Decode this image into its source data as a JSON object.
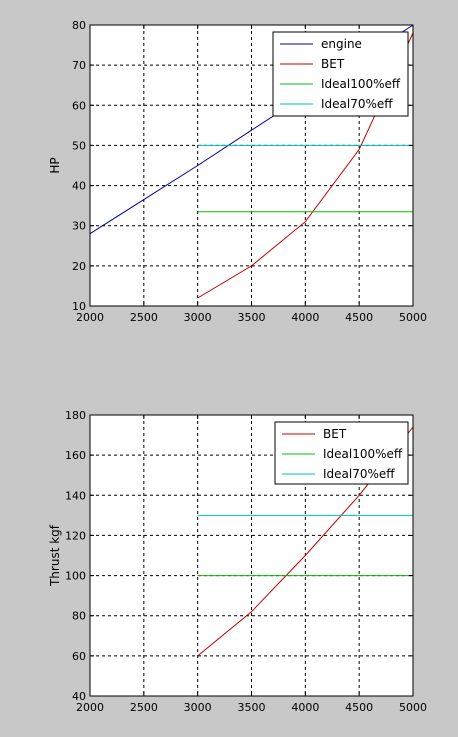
{
  "chart_data": [
    {
      "type": "line",
      "ylabel": "HP",
      "xlim": [
        2000,
        5000
      ],
      "ylim": [
        10,
        80
      ],
      "xticks": [
        2000,
        2500,
        3000,
        3500,
        4000,
        4500,
        5000
      ],
      "yticks": [
        10,
        20,
        30,
        40,
        50,
        60,
        70,
        80
      ],
      "grid": true,
      "legend_position": "top-right",
      "series": [
        {
          "name": "engine",
          "color": "#0000a0",
          "x": [
            2000,
            2500,
            3000,
            3500,
            4000,
            4500,
            5000
          ],
          "y": [
            28,
            36.5,
            45,
            53.8,
            62.5,
            71.2,
            80
          ]
        },
        {
          "name": "BET",
          "color": "#c00000",
          "x": [
            3000,
            3500,
            4000,
            4500,
            5000
          ],
          "y": [
            12,
            20,
            31,
            49,
            78
          ]
        },
        {
          "name": "Ideal100%eff",
          "color": "#00c000",
          "x": [
            3000,
            5000
          ],
          "y": [
            33.5,
            33.5
          ]
        },
        {
          "name": "Ideal70%eff",
          "color": "#00c0c0",
          "x": [
            3000,
            5000
          ],
          "y": [
            50,
            50
          ]
        }
      ]
    },
    {
      "type": "line",
      "ylabel": "Thrust kgf",
      "xlim": [
        2000,
        5000
      ],
      "ylim": [
        40,
        180
      ],
      "xticks": [
        2000,
        2500,
        3000,
        3500,
        4000,
        4500,
        5000
      ],
      "yticks": [
        40,
        60,
        80,
        100,
        120,
        140,
        160,
        180
      ],
      "grid": true,
      "legend_position": "top-right",
      "series": [
        {
          "name": "BET",
          "color": "#c00000",
          "x": [
            3000,
            3500,
            4000,
            4500,
            5000
          ],
          "y": [
            60,
            82,
            110,
            140,
            174
          ]
        },
        {
          "name": "Ideal100%eff",
          "color": "#00c000",
          "x": [
            3000,
            5000
          ],
          "y": [
            100,
            100
          ]
        },
        {
          "name": "Ideal70%eff",
          "color": "#00c0c0",
          "x": [
            3000,
            5000
          ],
          "y": [
            130,
            130
          ]
        }
      ]
    }
  ]
}
